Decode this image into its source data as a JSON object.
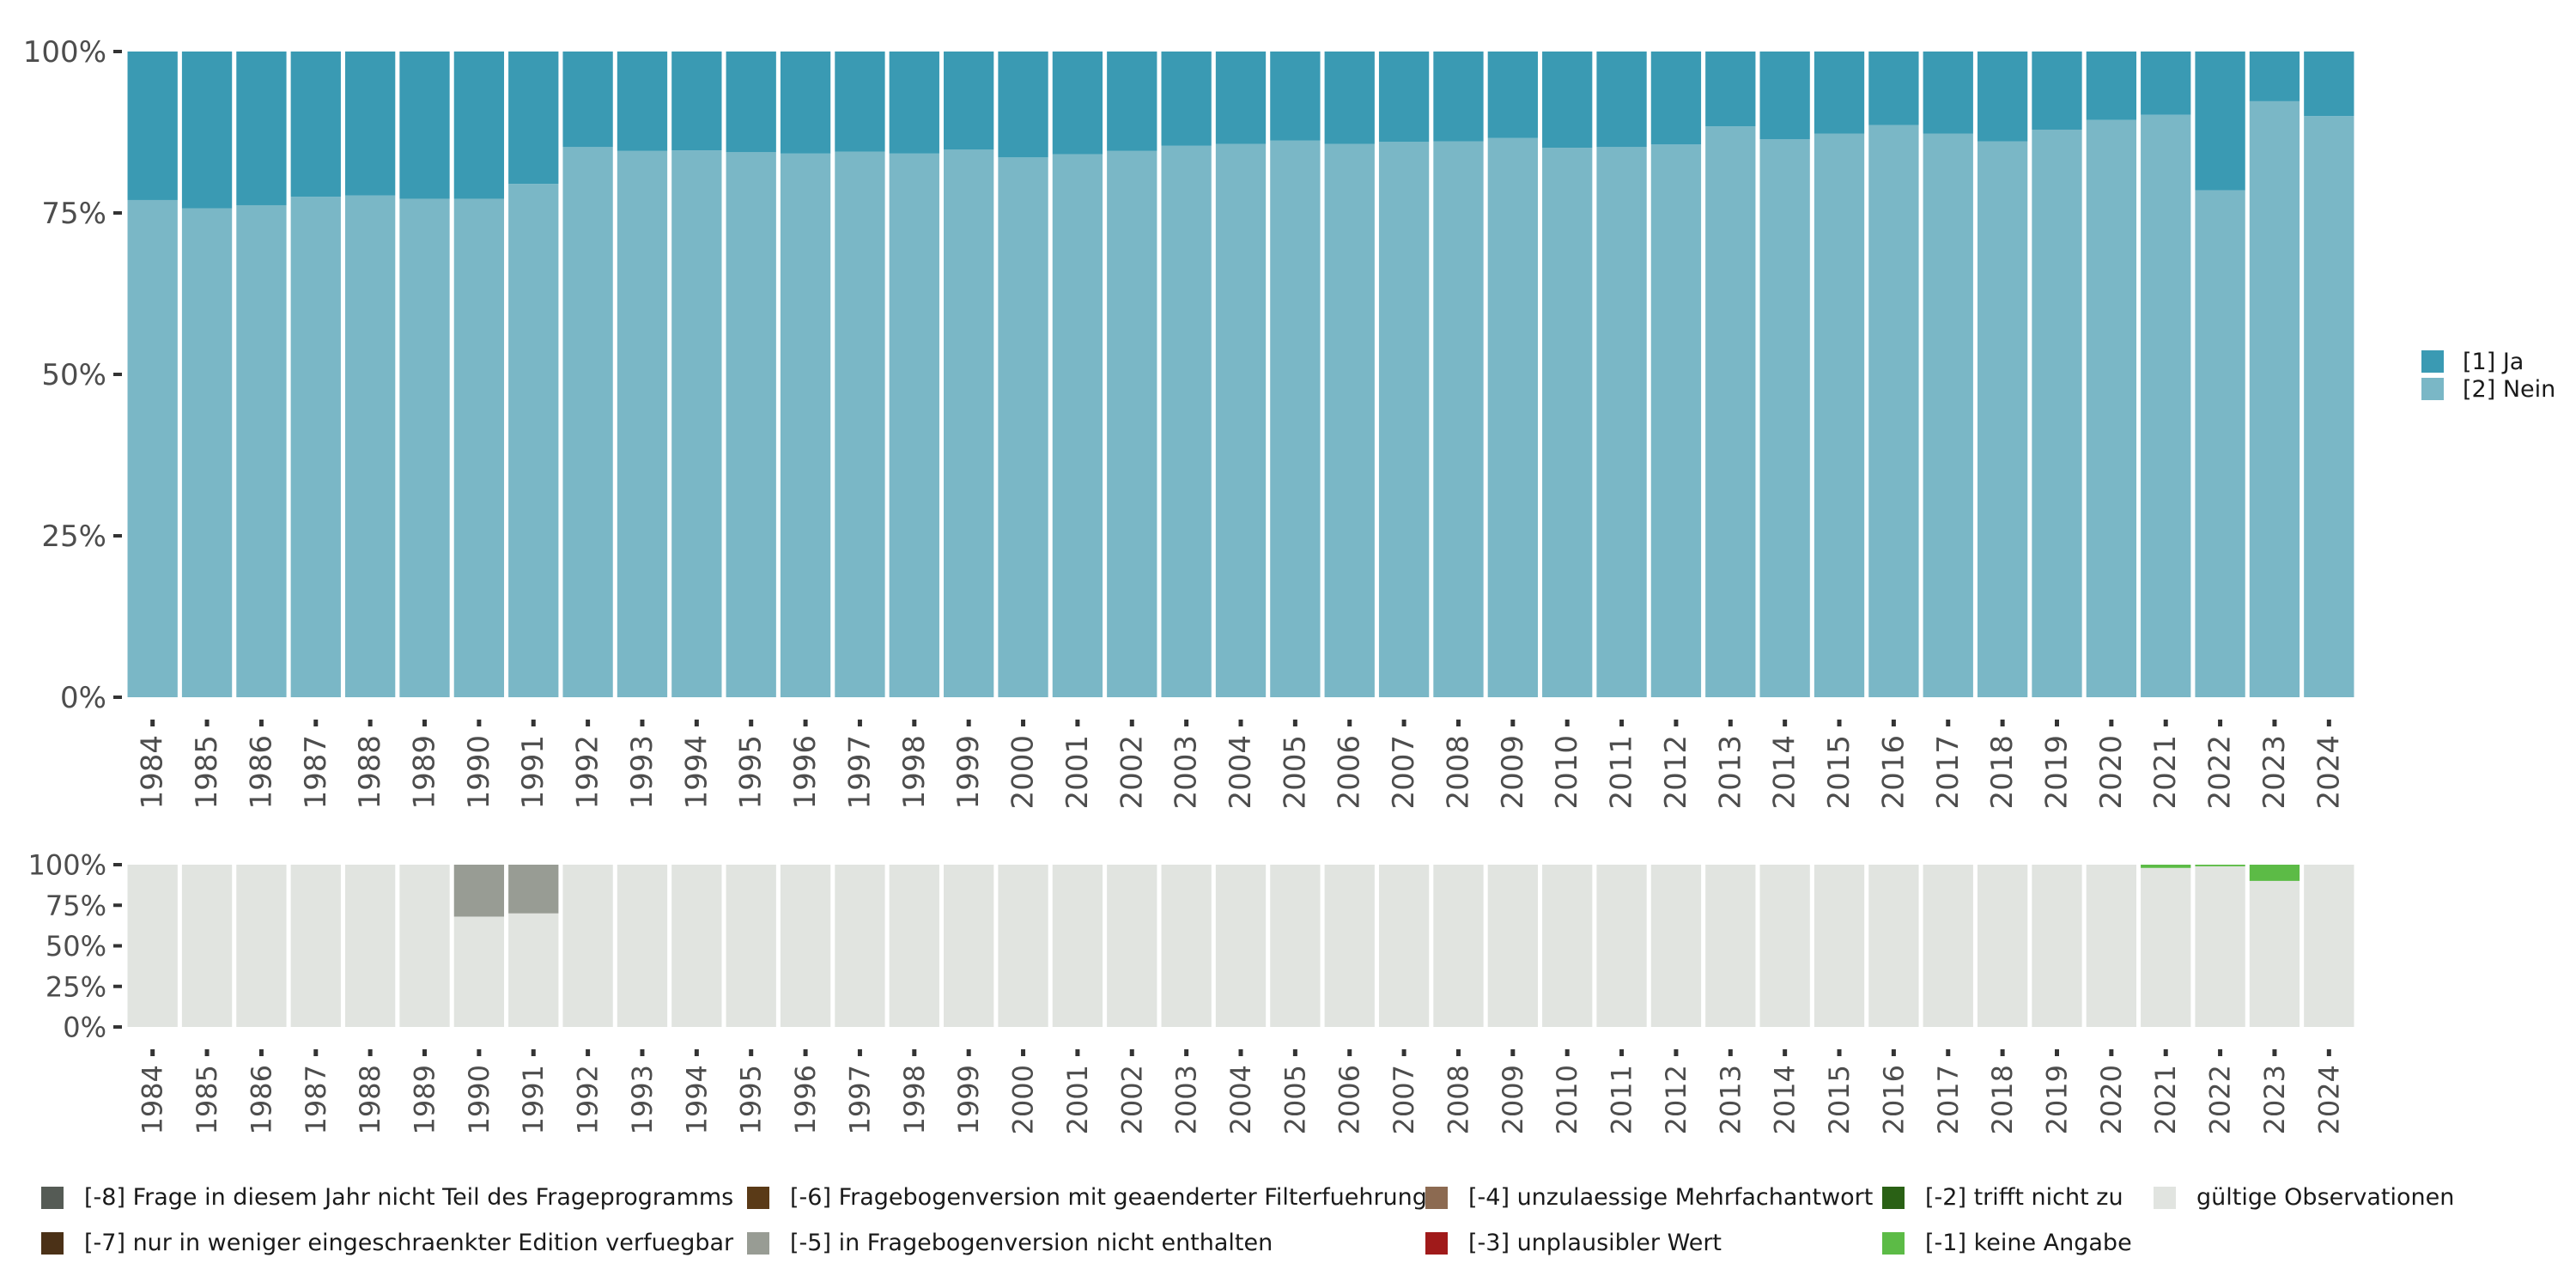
{
  "chart_data": [
    {
      "type": "bar",
      "stacked": true,
      "categories": [
        "1984",
        "1985",
        "1986",
        "1987",
        "1988",
        "1989",
        "1990",
        "1991",
        "1992",
        "1993",
        "1994",
        "1995",
        "1996",
        "1997",
        "1998",
        "1999",
        "2000",
        "2001",
        "2002",
        "2003",
        "2004",
        "2005",
        "2006",
        "2007",
        "2008",
        "2009",
        "2010",
        "2011",
        "2012",
        "2013",
        "2014",
        "2015",
        "2016",
        "2017",
        "2018",
        "2019",
        "2020",
        "2021",
        "2022",
        "2023",
        "2024"
      ],
      "series": [
        {
          "name": "[2] Nein",
          "color": "#7AB7C6",
          "values": [
            77,
            75.7,
            76.2,
            77.5,
            77.7,
            77.2,
            77.2,
            79.5,
            85.2,
            84.6,
            84.7,
            84.4,
            84.2,
            84.5,
            84.2,
            84.8,
            83.6,
            84.1,
            84.6,
            85.4,
            85.7,
            86.2,
            85.7,
            86.0,
            86.1,
            86.6,
            85.1,
            85.2,
            85.6,
            88.4,
            86.4,
            87.3,
            88.6,
            87.3,
            86.1,
            87.9,
            89.4,
            90.2,
            78.5,
            92.3,
            90.0
          ]
        },
        {
          "name": "[1] Ja",
          "color": "#3A9AB3",
          "values": [
            23,
            24.3,
            23.8,
            22.5,
            22.3,
            22.8,
            22.8,
            20.5,
            14.8,
            15.4,
            15.3,
            15.6,
            15.8,
            15.5,
            15.8,
            15.2,
            16.4,
            15.9,
            15.4,
            14.6,
            14.3,
            13.8,
            14.3,
            14.0,
            13.9,
            13.4,
            14.9,
            14.8,
            14.4,
            11.6,
            13.6,
            12.7,
            11.4,
            12.7,
            13.9,
            12.1,
            10.6,
            9.8,
            21.5,
            7.7,
            10.0
          ]
        }
      ],
      "y_ticks": [
        "0%",
        "25%",
        "50%",
        "75%",
        "100%"
      ],
      "ylim": [
        0,
        100
      ],
      "legend": {
        "position": "right",
        "entries": [
          "[1] Ja",
          "[2] Nein"
        ]
      }
    },
    {
      "type": "bar",
      "stacked": true,
      "categories": [
        "1984",
        "1985",
        "1986",
        "1987",
        "1988",
        "1989",
        "1990",
        "1991",
        "1992",
        "1993",
        "1994",
        "1995",
        "1996",
        "1997",
        "1998",
        "1999",
        "2000",
        "2001",
        "2002",
        "2003",
        "2004",
        "2005",
        "2006",
        "2007",
        "2008",
        "2009",
        "2010",
        "2011",
        "2012",
        "2013",
        "2014",
        "2015",
        "2016",
        "2017",
        "2018",
        "2019",
        "2020",
        "2021",
        "2022",
        "2023",
        "2024"
      ],
      "series": [
        {
          "name": "gültige Observationen",
          "color": "#E1E4E0",
          "values": [
            100,
            100,
            100,
            100,
            100,
            100,
            68,
            70,
            100,
            100,
            100,
            100,
            100,
            100,
            100,
            100,
            100,
            100,
            100,
            100,
            100,
            100,
            100,
            100,
            100,
            100,
            100,
            100,
            100,
            100,
            100,
            100,
            100,
            100,
            100,
            100,
            100,
            98,
            99,
            90,
            100
          ]
        },
        {
          "name": "[-5] in Fragebogenversion nicht enthalten",
          "color": "#989C94",
          "values": [
            0,
            0,
            0,
            0,
            0,
            0,
            32,
            30,
            0,
            0,
            0,
            0,
            0,
            0,
            0,
            0,
            0,
            0,
            0,
            0,
            0,
            0,
            0,
            0,
            0,
            0,
            0,
            0,
            0,
            0,
            0,
            0,
            0,
            0,
            0,
            0,
            0,
            0,
            0,
            0,
            0
          ]
        },
        {
          "name": "[-1] keine Angabe",
          "color": "#5CBB46",
          "values": [
            0,
            0,
            0,
            0,
            0,
            0,
            0,
            0,
            0,
            0,
            0,
            0,
            0,
            0,
            0,
            0,
            0,
            0,
            0,
            0,
            0,
            0,
            0,
            0,
            0,
            0,
            0,
            0,
            0,
            0,
            0,
            0,
            0,
            0,
            0,
            0,
            0,
            2,
            1,
            10,
            0
          ]
        }
      ],
      "y_ticks": [
        "0%",
        "25%",
        "50%",
        "75%",
        "100%"
      ],
      "ylim": [
        0,
        100
      ]
    }
  ],
  "bottom_legend": [
    {
      "label": "[-8] Frage in diesem Jahr nicht Teil des Frageprogramms",
      "color": "#555B55"
    },
    {
      "label": "[-7] nur in weniger eingeschraenkter Edition verfuegbar",
      "color": "#4B3117"
    },
    {
      "label": "[-6] Fragebogenversion mit geaenderter Filterfuehrung",
      "color": "#5A3A17"
    },
    {
      "label": "[-5] in Fragebogenversion nicht enthalten",
      "color": "#989C94"
    },
    {
      "label": "[-4] unzulaessige Mehrfachantwort",
      "color": "#8C6A51"
    },
    {
      "label": "[-3] unplausibler Wert",
      "color": "#A01A1A"
    },
    {
      "label": "[-2] trifft nicht zu",
      "color": "#2A6115"
    },
    {
      "label": "[-1] keine Angabe",
      "color": "#5CBB46"
    },
    {
      "label": "gültige Observationen",
      "color": "#E1E4E0"
    }
  ]
}
